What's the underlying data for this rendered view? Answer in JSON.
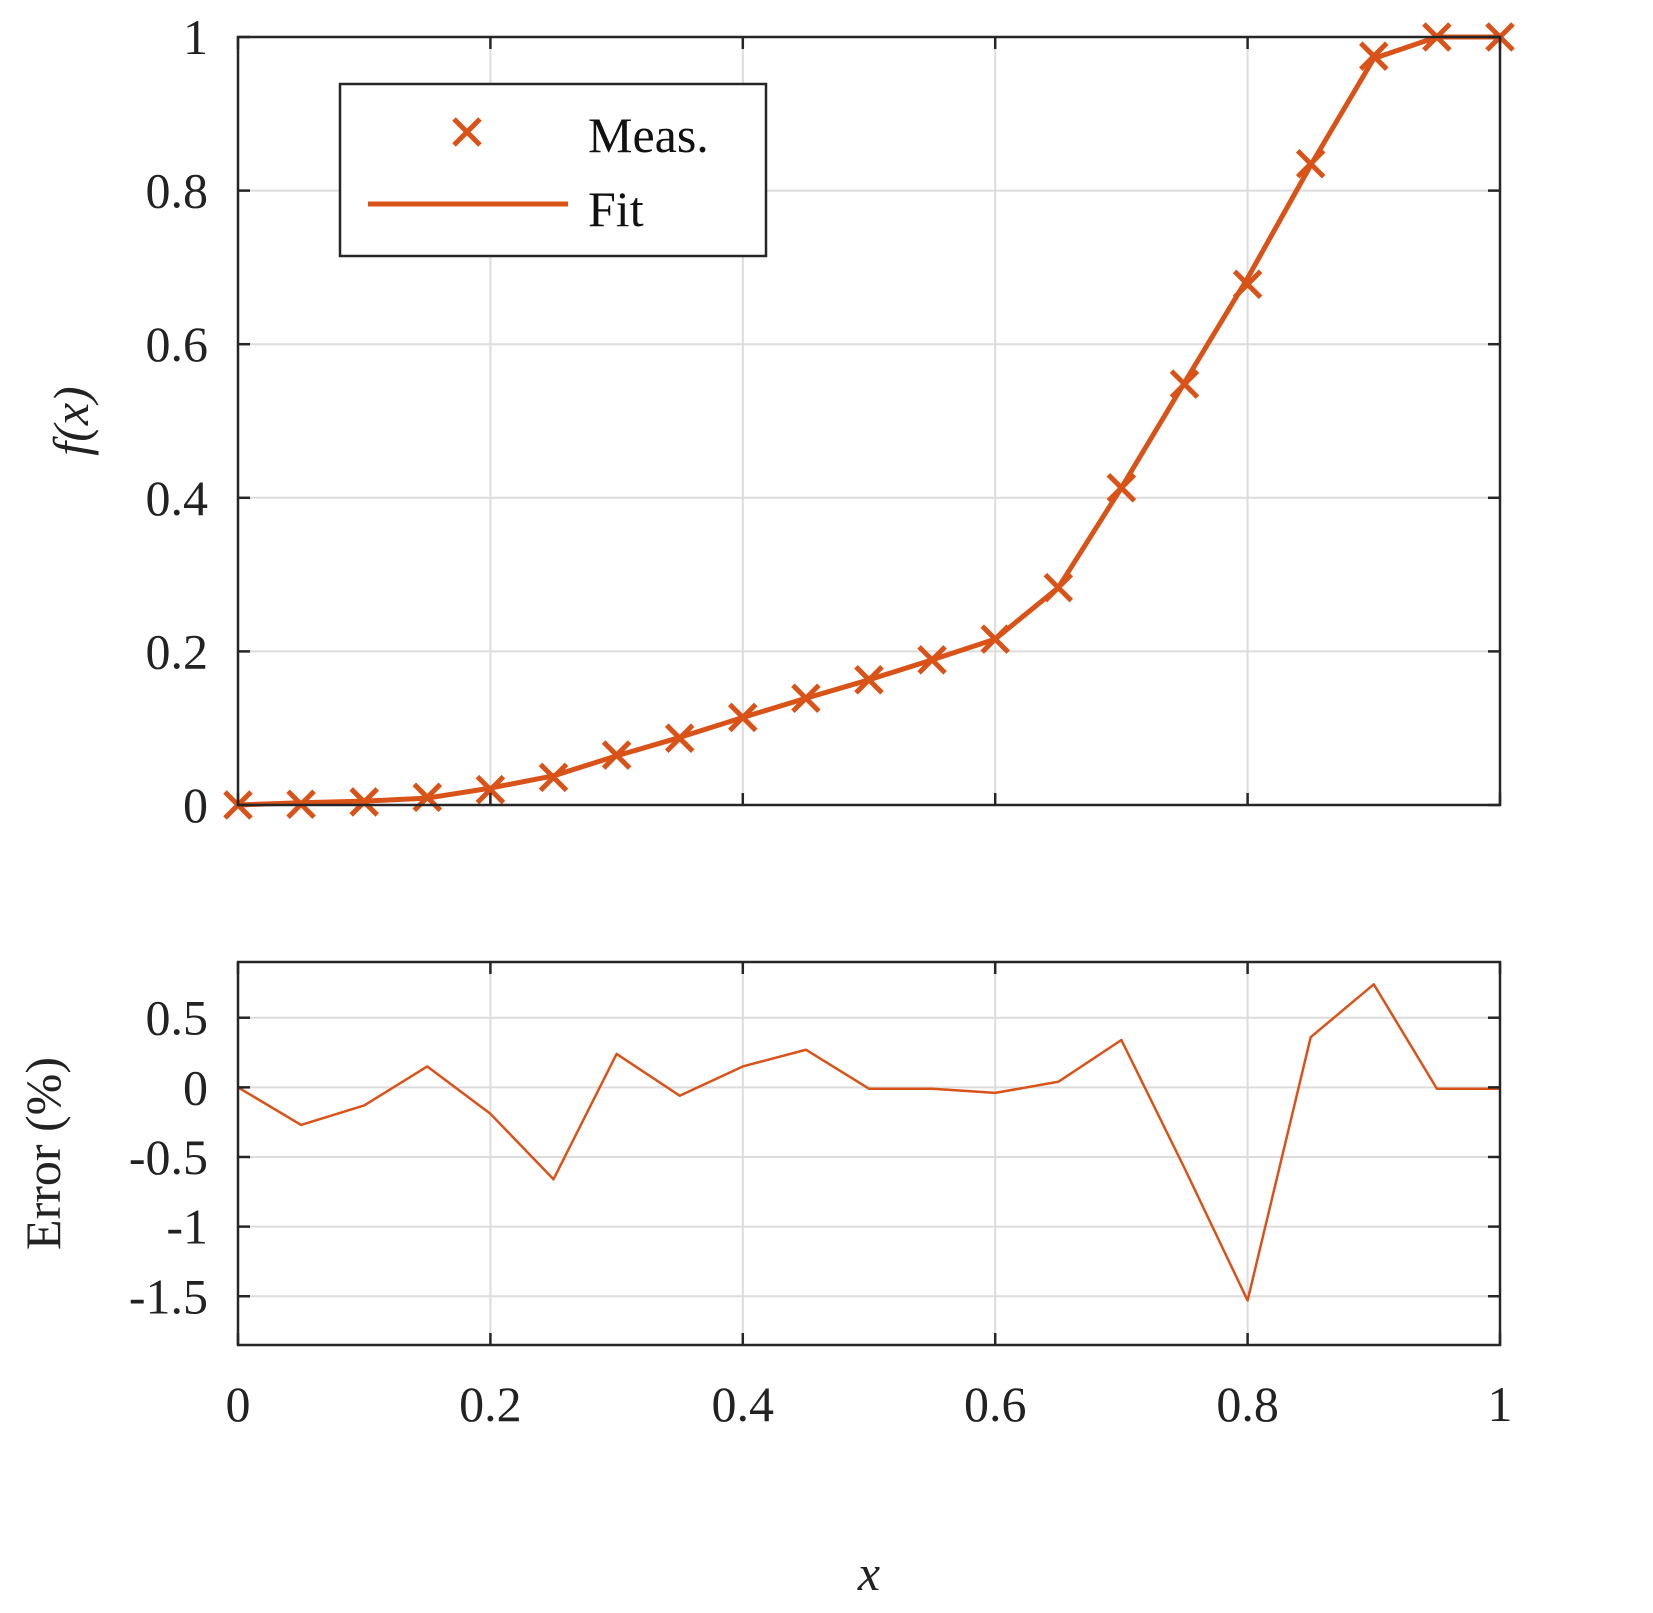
{
  "chart_data": [
    {
      "type": "line",
      "ylabel": "f(x)",
      "xlabel": "",
      "xlim": [
        0,
        1
      ],
      "ylim": [
        0,
        1
      ],
      "xticks": [
        0,
        0.2,
        0.4,
        0.6,
        0.8,
        1
      ],
      "yticks": [
        0,
        0.2,
        0.4,
        0.6,
        0.8,
        1
      ],
      "xtick_labels": [
        "",
        "",
        "",
        "",
        "",
        ""
      ],
      "ytick_labels": [
        "0",
        "0.2",
        "0.4",
        "0.6",
        "0.8",
        "1"
      ],
      "grid": true,
      "legend": {
        "placement": "top-left",
        "entries": [
          "Meas.",
          "Fit"
        ]
      },
      "series": [
        {
          "name": "Meas.",
          "style": "markers-x",
          "color": "#D95319",
          "x": [
            0,
            0.05,
            0.1,
            0.15,
            0.2,
            0.25,
            0.3,
            0.35,
            0.4,
            0.45,
            0.5,
            0.55,
            0.6,
            0.65,
            0.7,
            0.75,
            0.8,
            0.85,
            0.9,
            0.95,
            1
          ],
          "y": [
            0,
            0.001,
            0.004,
            0.01,
            0.02,
            0.036,
            0.065,
            0.087,
            0.114,
            0.139,
            0.163,
            0.189,
            0.216,
            0.283,
            0.413,
            0.548,
            0.678,
            0.835,
            0.975,
            1.0,
            1.0
          ]
        },
        {
          "name": "Fit",
          "style": "line",
          "color": "#D95319",
          "x": [
            0,
            0.05,
            0.1,
            0.15,
            0.2,
            0.25,
            0.3,
            0.35,
            0.4,
            0.45,
            0.5,
            0.55,
            0.6,
            0.65,
            0.7,
            0.75,
            0.8,
            0.85,
            0.9,
            0.95,
            1
          ],
          "y": [
            0,
            0.003,
            0.005,
            0.009,
            0.022,
            0.038,
            0.064,
            0.088,
            0.114,
            0.139,
            0.163,
            0.189,
            0.216,
            0.283,
            0.413,
            0.55,
            0.686,
            0.833,
            0.972,
            1.0,
            1.0
          ]
        }
      ]
    },
    {
      "type": "line",
      "ylabel": "Error (%)",
      "xlabel": "x",
      "xlim": [
        0,
        1
      ],
      "ylim": [
        -1.85,
        0.9
      ],
      "xticks": [
        0,
        0.2,
        0.4,
        0.6,
        0.8,
        1
      ],
      "yticks": [
        -1.5,
        -1,
        -0.5,
        0,
        0.5
      ],
      "xtick_labels": [
        "0",
        "0.2",
        "0.4",
        "0.6",
        "0.8",
        "1"
      ],
      "ytick_labels": [
        "-1.5",
        "-1",
        "-0.5",
        "0",
        "0.5"
      ],
      "grid": true,
      "series": [
        {
          "color": "#D95319",
          "x": [
            0,
            0.05,
            0.1,
            0.15,
            0.2,
            0.25,
            0.3,
            0.35,
            0.4,
            0.45,
            0.5,
            0.55,
            0.6,
            0.65,
            0.7,
            0.75,
            0.8,
            0.85,
            0.9,
            0.95,
            1
          ],
          "y": [
            0,
            -0.27,
            -0.13,
            0.15,
            -0.19,
            -0.66,
            0.24,
            -0.06,
            0.15,
            0.27,
            -0.01,
            -0.01,
            -0.04,
            0.04,
            0.34,
            -0.58,
            -1.53,
            0.36,
            0.74,
            -0.01,
            -0.01
          ]
        }
      ]
    }
  ]
}
